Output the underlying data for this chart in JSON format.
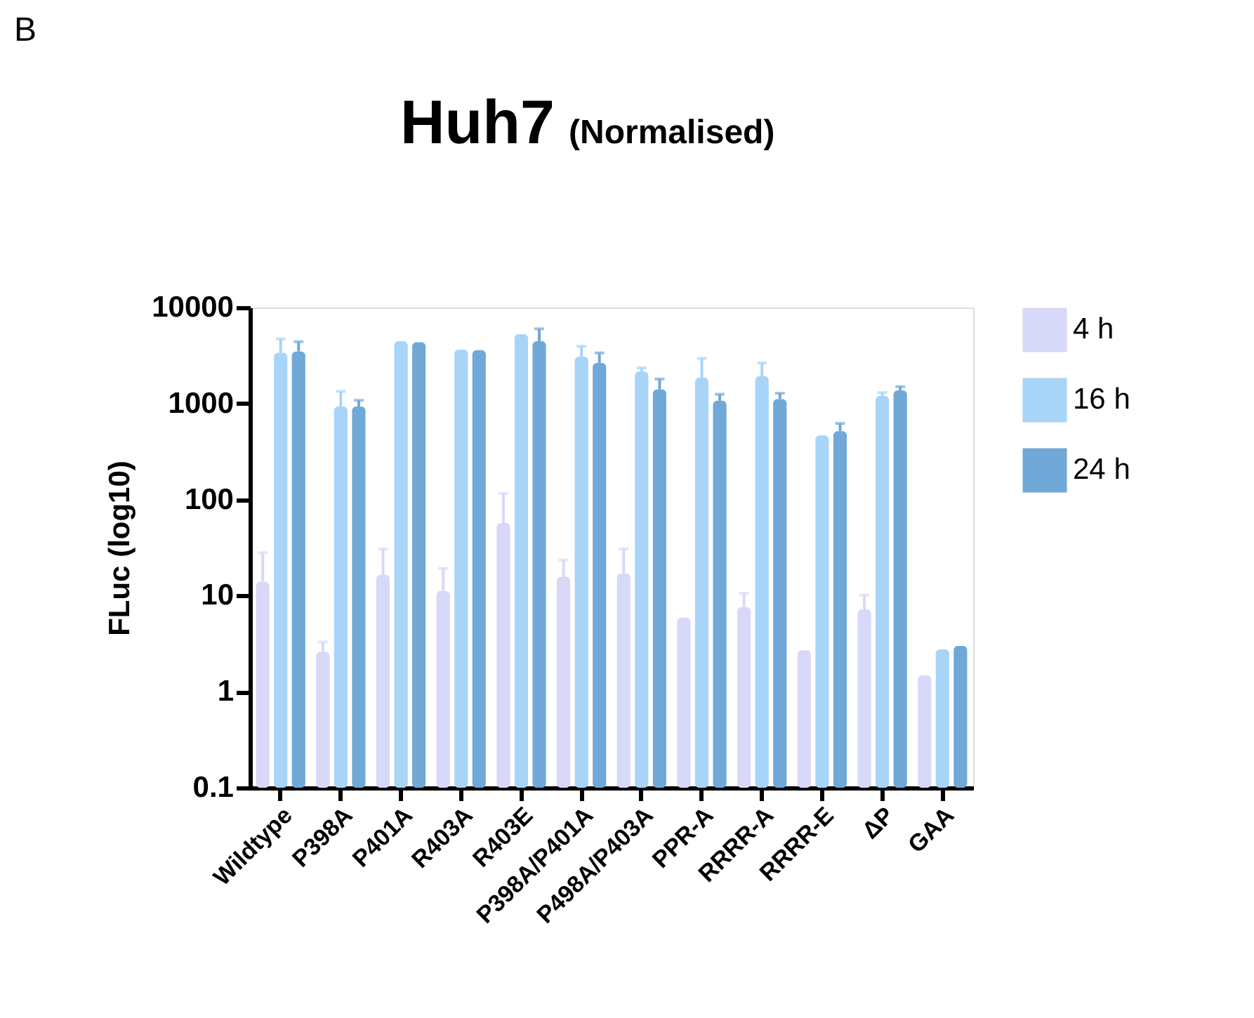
{
  "chart_data": {
    "type": "bar",
    "title": "Huh7",
    "subtitle": "(Normalised)",
    "ylabel": "FLuc (log10)",
    "annotations": [
      "B"
    ],
    "categories": [
      "Wildtype",
      "P398A",
      "P401A",
      "R403A",
      "R403E",
      "P398A/P401A",
      "P498A/P403A",
      "PPR-A",
      "RRRR-A",
      "RRRR-E",
      "ΔP",
      "GAA"
    ],
    "series": [
      {
        "name": "4 h",
        "color": "#d8d8f8",
        "values": [
          14,
          2.6,
          16.5,
          11.2,
          57,
          15.7,
          17,
          5.9,
          7.6,
          2.7,
          7.2,
          1.48
        ],
        "errors": [
          [
            14,
            28
          ],
          [
            2.6,
            3.3
          ],
          [
            16.5,
            30.5
          ],
          [
            11.2,
            19.2
          ],
          [
            57,
            116
          ],
          [
            15.7,
            23.5
          ],
          [
            17,
            30.6
          ],
          null,
          [
            7.6,
            10.6
          ],
          null,
          [
            7.2,
            10.1
          ],
          null
        ]
      },
      {
        "name": "16 h",
        "color": "#a8d4f8",
        "values": [
          3380,
          930,
          4450,
          3650,
          5280,
          3080,
          2150,
          1860,
          1930,
          465,
          1200,
          2.75
        ],
        "errors": [
          [
            3380,
            4700
          ],
          [
            930,
            1340
          ],
          null,
          null,
          null,
          [
            3080,
            3950
          ],
          [
            2150,
            2350
          ],
          [
            1860,
            2950
          ],
          [
            1930,
            2650
          ],
          null,
          [
            1200,
            1300
          ],
          null
        ]
      },
      {
        "name": "24 h",
        "color": "#70a8d8",
        "values": [
          3480,
          930,
          4350,
          3600,
          4450,
          2640,
          1400,
          1070,
          1110,
          515,
          1370,
          3.0
        ],
        "errors": [
          [
            3480,
            4400
          ],
          [
            930,
            1080
          ],
          null,
          null,
          [
            4450,
            6000
          ],
          [
            2640,
            3370
          ],
          [
            1400,
            1800
          ],
          [
            1070,
            1250
          ],
          [
            1110,
            1280
          ],
          [
            515,
            620
          ],
          [
            1370,
            1500
          ],
          null
        ]
      }
    ],
    "log": true,
    "ylim": [
      0.1,
      10000
    ],
    "yticks": [
      0.1,
      1,
      10,
      100,
      1000,
      10000
    ],
    "grid": false,
    "legend": "top right"
  }
}
